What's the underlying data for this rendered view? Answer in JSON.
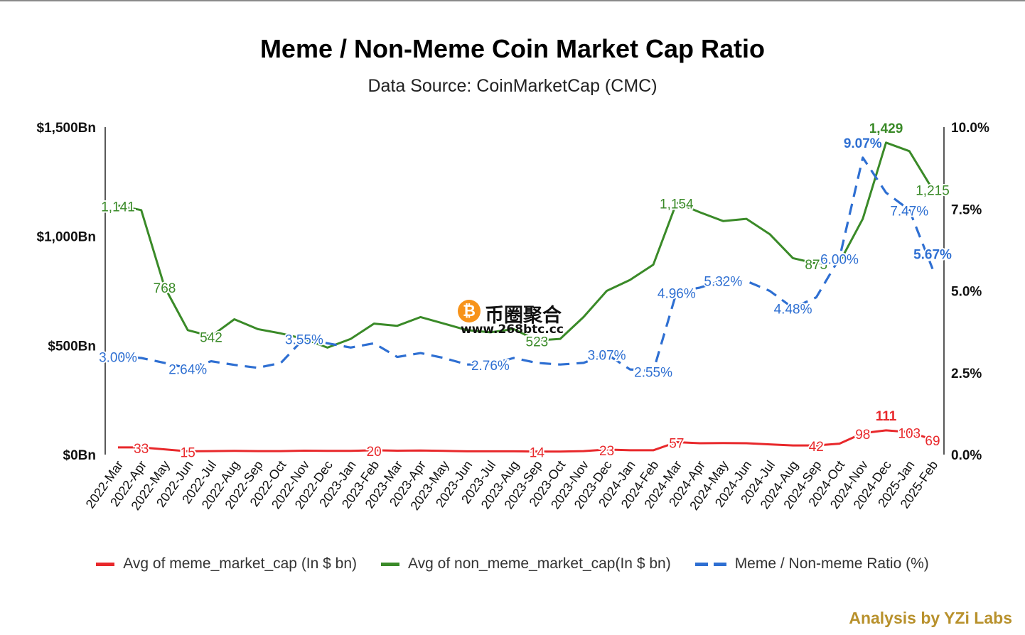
{
  "chart_data": {
    "type": "line",
    "title": "Meme / Non-Meme Coin Market Cap Ratio",
    "subtitle": "Data Source: CoinMarketCap (CMC)",
    "credit": "Analysis by YZi Labs",
    "categories": [
      "2022-Mar",
      "2022-Apr",
      "2022-May",
      "2022-Jun",
      "2022-Jul",
      "2022-Aug",
      "2022-Sep",
      "2022-Oct",
      "2022-Nov",
      "2022-Dec",
      "2023-Jan",
      "2023-Feb",
      "2023-Mar",
      "2023-Apr",
      "2023-May",
      "2023-Jun",
      "2023-Jul",
      "2023-Aug",
      "2023-Sep",
      "2023-Oct",
      "2023-Nov",
      "2023-Dec",
      "2024-Jan",
      "2024-Feb",
      "2024-Mar",
      "2024-Apr",
      "2024-May",
      "2024-Jun",
      "2024-Jul",
      "2024-Aug",
      "2024-Sep",
      "2024-Oct",
      "2024-Nov",
      "2024-Dec",
      "2025-Jan",
      "2025-Feb"
    ],
    "left_axis": {
      "min": 0,
      "max": 1500,
      "ticks": [
        "$0Bn",
        "$500Bn",
        "$1,000Bn",
        "$1,500Bn"
      ],
      "tick_values": [
        0,
        500,
        1000,
        1500
      ]
    },
    "right_axis": {
      "min": 0,
      "max": 10,
      "ticks": [
        "0.0%",
        "2.5%",
        "5.0%",
        "7.5%",
        "10.0%"
      ],
      "tick_values": [
        0,
        2.5,
        5,
        7.5,
        10
      ]
    },
    "grid": false,
    "legend_position": "bottom",
    "series": [
      {
        "name": "Avg of meme_market_cap (In $ bn)",
        "axis": "left",
        "color": "#e8282b",
        "style": "solid",
        "values": [
          33,
          33,
          24,
          15,
          16,
          17,
          16,
          16,
          18,
          17,
          17,
          20,
          18,
          19,
          17,
          15,
          15,
          15,
          14,
          14,
          16,
          23,
          20,
          20,
          57,
          52,
          53,
          52,
          47,
          42,
          42,
          50,
          98,
          111,
          103,
          69
        ],
        "labels": [
          {
            "index": 1,
            "text": "33",
            "bold": false
          },
          {
            "index": 3,
            "text": "15",
            "bold": false
          },
          {
            "index": 11,
            "text": "20",
            "bold": false
          },
          {
            "index": 18,
            "text": "14",
            "bold": false
          },
          {
            "index": 21,
            "text": "23",
            "bold": false
          },
          {
            "index": 24,
            "text": "57",
            "bold": false
          },
          {
            "index": 30,
            "text": "42",
            "bold": false
          },
          {
            "index": 32,
            "text": "98",
            "bold": false
          },
          {
            "index": 33,
            "text": "111",
            "bold": true
          },
          {
            "index": 34,
            "text": "103",
            "bold": false
          },
          {
            "index": 35,
            "text": "69",
            "bold": false
          }
        ]
      },
      {
        "name": "Avg of non_meme_market_cap(In $ bn)",
        "axis": "left",
        "color": "#3a8a28",
        "style": "solid",
        "values": [
          1141,
          1120,
          768,
          570,
          542,
          620,
          575,
          555,
          530,
          490,
          530,
          600,
          590,
          630,
          600,
          570,
          560,
          575,
          523,
          530,
          630,
          750,
          800,
          870,
          1154,
          1110,
          1070,
          1080,
          1010,
          900,
          875,
          880,
          1080,
          1429,
          1390,
          1215
        ],
        "labels": [
          {
            "index": 0,
            "text": "1,141",
            "bold": false
          },
          {
            "index": 2,
            "text": "768",
            "bold": false
          },
          {
            "index": 4,
            "text": "542",
            "bold": false
          },
          {
            "index": 18,
            "text": "523",
            "bold": false
          },
          {
            "index": 24,
            "text": "1,154",
            "bold": false
          },
          {
            "index": 30,
            "text": "875",
            "bold": false
          },
          {
            "index": 33,
            "text": "1,429",
            "bold": true
          },
          {
            "index": 35,
            "text": "1,215",
            "bold": false
          }
        ]
      },
      {
        "name": "Meme / Non-meme Ratio (%)",
        "axis": "right",
        "color": "#2e6fd2",
        "style": "dashed",
        "values": [
          3.0,
          2.95,
          2.8,
          2.64,
          2.85,
          2.74,
          2.65,
          2.8,
          3.55,
          3.4,
          3.27,
          3.4,
          2.98,
          3.1,
          2.95,
          2.75,
          2.76,
          2.95,
          2.8,
          2.75,
          2.8,
          3.07,
          2.6,
          2.55,
          4.96,
          5.1,
          5.32,
          5.3,
          5.0,
          4.48,
          4.8,
          6.0,
          9.07,
          8.0,
          7.47,
          5.67
        ],
        "labels": [
          {
            "index": 0,
            "text": "3.00%",
            "bold": false
          },
          {
            "index": 3,
            "text": "2.64%",
            "bold": false
          },
          {
            "index": 8,
            "text": "3.55%",
            "bold": false
          },
          {
            "index": 16,
            "text": "2.76%",
            "bold": false
          },
          {
            "index": 21,
            "text": "3.07%",
            "bold": false
          },
          {
            "index": 23,
            "text": "2.55%",
            "bold": false
          },
          {
            "index": 24,
            "text": "4.96%",
            "bold": false
          },
          {
            "index": 26,
            "text": "5.32%",
            "bold": false
          },
          {
            "index": 29,
            "text": "4.48%",
            "bold": false
          },
          {
            "index": 31,
            "text": "6.00%",
            "bold": false
          },
          {
            "index": 32,
            "text": "9.07%",
            "bold": true
          },
          {
            "index": 34,
            "text": "7.47%",
            "bold": false
          },
          {
            "index": 35,
            "text": "5.67%",
            "bold": true
          }
        ]
      }
    ]
  },
  "watermark": {
    "name": "币圈聚合",
    "url": "www.268btc.cc",
    "icon": "bitcoin-icon"
  }
}
